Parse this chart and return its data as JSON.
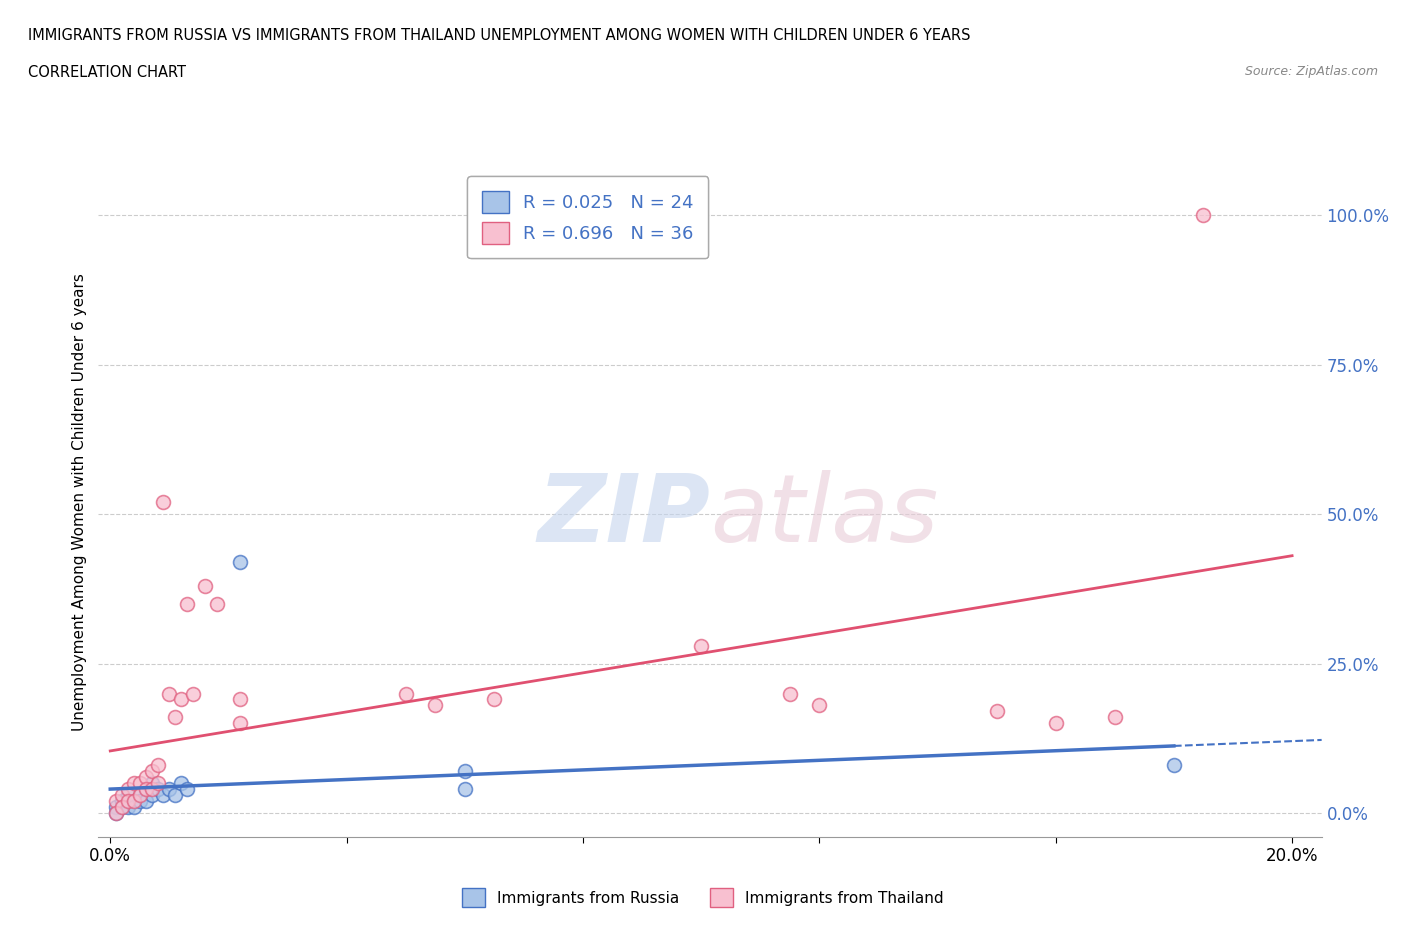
{
  "title_line1": "IMMIGRANTS FROM RUSSIA VS IMMIGRANTS FROM THAILAND UNEMPLOYMENT AMONG WOMEN WITH CHILDREN UNDER 6 YEARS",
  "title_line2": "CORRELATION CHART",
  "source_text": "Source: ZipAtlas.com",
  "ylabel": "Unemployment Among Women with Children Under 6 years",
  "xlim": [
    -0.002,
    0.205
  ],
  "ylim": [
    -0.04,
    1.08
  ],
  "yticks": [
    0.0,
    0.25,
    0.5,
    0.75,
    1.0
  ],
  "ytick_labels": [
    "0.0%",
    "25.0%",
    "50.0%",
    "75.0%",
    "100.0%"
  ],
  "xticks": [
    0.0,
    0.04,
    0.08,
    0.12,
    0.16,
    0.2
  ],
  "xtick_labels": [
    "0.0%",
    "",
    "",
    "",
    "",
    "20.0%"
  ],
  "russia_color": "#a8c4e8",
  "thailand_color": "#f8c0d0",
  "russia_edge_color": "#4472c4",
  "thailand_edge_color": "#e06080",
  "trend_russia_color": "#4472c4",
  "trend_thailand_color": "#e05070",
  "legend_R_color": "#4472c4",
  "grid_color": "#cccccc",
  "watermark_color_zip": "#c8d8f0",
  "watermark_color_atlas": "#d8c8d0",
  "russia_R": 0.025,
  "russia_N": 24,
  "thailand_R": 0.696,
  "thailand_N": 36,
  "russia_points_x": [
    0.001,
    0.001,
    0.002,
    0.002,
    0.003,
    0.003,
    0.004,
    0.004,
    0.005,
    0.005,
    0.006,
    0.006,
    0.007,
    0.007,
    0.008,
    0.009,
    0.01,
    0.011,
    0.012,
    0.013,
    0.022,
    0.06,
    0.06,
    0.18
  ],
  "russia_points_y": [
    0.01,
    0.0,
    0.02,
    0.01,
    0.03,
    0.01,
    0.02,
    0.01,
    0.03,
    0.02,
    0.04,
    0.02,
    0.05,
    0.03,
    0.04,
    0.03,
    0.04,
    0.03,
    0.05,
    0.04,
    0.42,
    0.07,
    0.04,
    0.08
  ],
  "thailand_points_x": [
    0.001,
    0.001,
    0.002,
    0.002,
    0.003,
    0.003,
    0.004,
    0.004,
    0.005,
    0.005,
    0.006,
    0.006,
    0.007,
    0.007,
    0.008,
    0.008,
    0.009,
    0.01,
    0.011,
    0.012,
    0.013,
    0.014,
    0.016,
    0.018,
    0.022,
    0.022,
    0.05,
    0.055,
    0.065,
    0.1,
    0.115,
    0.12,
    0.15,
    0.16,
    0.17,
    0.185
  ],
  "thailand_points_y": [
    0.02,
    0.0,
    0.03,
    0.01,
    0.04,
    0.02,
    0.05,
    0.02,
    0.05,
    0.03,
    0.06,
    0.04,
    0.07,
    0.04,
    0.08,
    0.05,
    0.52,
    0.2,
    0.16,
    0.19,
    0.35,
    0.2,
    0.38,
    0.35,
    0.15,
    0.19,
    0.2,
    0.18,
    0.19,
    0.28,
    0.2,
    0.18,
    0.17,
    0.15,
    0.16,
    1.0
  ],
  "marker_size": 100
}
